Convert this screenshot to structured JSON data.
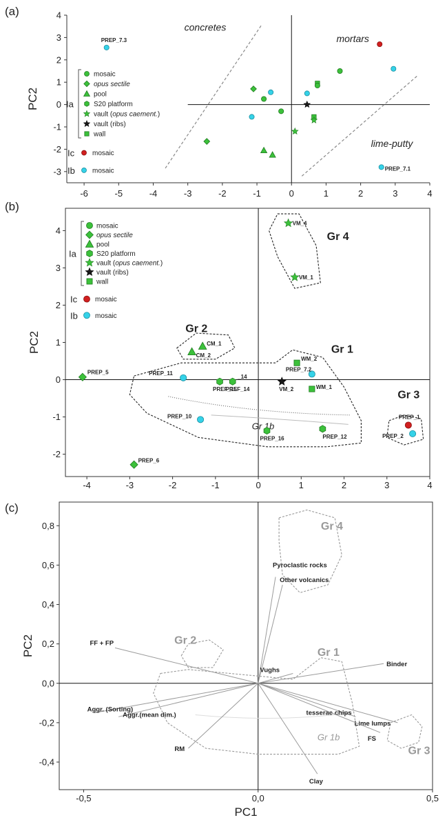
{
  "figure": {
    "colors": {
      "green": "#3cc13b",
      "green_stroke": "#1f7a1f",
      "red": "#d11f1f",
      "cyan": "#35d2e8",
      "dark": "#1a1a1a",
      "dash": "#888888",
      "gray_text": "#999999"
    }
  },
  "chart_data": [
    {
      "panel": "(a)",
      "type": "scatter",
      "xlim": [
        -6.5,
        4
      ],
      "ylim": [
        -3.5,
        4
      ],
      "xticks": [
        -6,
        -5,
        -4,
        -3,
        -2,
        -1,
        0,
        1,
        2,
        3,
        4
      ],
      "yticks": [
        -3,
        -2,
        -1,
        0,
        1,
        2,
        3,
        4
      ],
      "xlabel": "",
      "ylabel": "PC2",
      "region_labels": [
        {
          "text": "concretes",
          "x": -3.1,
          "y": 3.3
        },
        {
          "text": "mortars",
          "x": 1.3,
          "y": 2.8
        },
        {
          "text": "lime-putty",
          "x": 2.3,
          "y": -1.9
        }
      ],
      "legend": {
        "groups": [
          {
            "label": "Ia",
            "items": [
              {
                "label": "mosaic",
                "marker": "circle",
                "color": "green"
              },
              {
                "label": "opus sectile",
                "italic": true,
                "marker": "diamond",
                "color": "green"
              },
              {
                "label": "pool",
                "marker": "triangle",
                "color": "green"
              },
              {
                "label": "S20 platform",
                "marker": "hexagon",
                "color": "green"
              },
              {
                "label": "vault (opus caement.)",
                "italic_part": "opus caement.",
                "marker": "star",
                "color": "green"
              },
              {
                "label": "vault (ribs)",
                "marker": "star",
                "color": "dark"
              },
              {
                "label": "wall",
                "marker": "square",
                "color": "green"
              }
            ]
          },
          {
            "label": "Ic",
            "items": [
              {
                "label": "mosaic",
                "marker": "circle",
                "color": "red"
              }
            ]
          },
          {
            "label": "Ib",
            "items": [
              {
                "label": "mosaic",
                "marker": "circle",
                "color": "cyan"
              }
            ]
          }
        ]
      },
      "points": [
        {
          "x": -5.35,
          "y": 2.55,
          "marker": "circle",
          "color": "cyan",
          "label": "PREP_7.3"
        },
        {
          "x": 2.55,
          "y": 2.7,
          "marker": "circle",
          "color": "red"
        },
        {
          "x": 2.95,
          "y": 1.6,
          "marker": "circle",
          "color": "cyan"
        },
        {
          "x": 1.4,
          "y": 1.5,
          "marker": "circle",
          "color": "green"
        },
        {
          "x": 0.75,
          "y": 0.95,
          "marker": "square",
          "color": "green"
        },
        {
          "x": 0.75,
          "y": 0.85,
          "marker": "circle",
          "color": "green"
        },
        {
          "x": -1.1,
          "y": 0.7,
          "marker": "diamond",
          "color": "green"
        },
        {
          "x": -0.6,
          "y": 0.55,
          "marker": "circle",
          "color": "cyan"
        },
        {
          "x": 0.45,
          "y": 0.5,
          "marker": "circle",
          "color": "cyan"
        },
        {
          "x": -0.8,
          "y": 0.25,
          "marker": "circle",
          "color": "green"
        },
        {
          "x": 0.45,
          "y": 0.0,
          "marker": "star",
          "color": "dark"
        },
        {
          "x": -0.3,
          "y": -0.3,
          "marker": "circle",
          "color": "green"
        },
        {
          "x": -1.15,
          "y": -0.55,
          "marker": "circle",
          "color": "cyan"
        },
        {
          "x": 0.65,
          "y": -0.55,
          "marker": "square",
          "color": "green"
        },
        {
          "x": 0.65,
          "y": -0.7,
          "marker": "star",
          "color": "green"
        },
        {
          "x": 0.1,
          "y": -1.2,
          "marker": "star",
          "color": "green"
        },
        {
          "x": -2.45,
          "y": -1.65,
          "marker": "diamond",
          "color": "green"
        },
        {
          "x": -0.8,
          "y": -2.05,
          "marker": "triangle",
          "color": "green"
        },
        {
          "x": -0.55,
          "y": -2.25,
          "marker": "triangle",
          "color": "green"
        },
        {
          "x": 2.6,
          "y": -2.8,
          "marker": "circle",
          "color": "cyan",
          "label": "PREP_7.1"
        }
      ],
      "dashed_lines": [
        {
          "x1": -3.65,
          "y1": -2.85,
          "x2": -0.85,
          "y2": 3.6
        },
        {
          "x1": 0.3,
          "y1": -3.2,
          "x2": 3.65,
          "y2": 1.3
        }
      ]
    },
    {
      "panel": "(b)",
      "type": "scatter",
      "xlim": [
        -4.5,
        4
      ],
      "ylim": [
        -2.6,
        4.6
      ],
      "xticks": [
        -4,
        -3,
        -2,
        -1,
        0,
        1,
        2,
        3,
        4
      ],
      "yticks": [
        -2,
        -1,
        0,
        1,
        2,
        3,
        4
      ],
      "xlabel": "",
      "ylabel": "PC2",
      "group_labels": [
        {
          "text": "Gr 4",
          "x": 1.6,
          "y": 3.75
        },
        {
          "text": "Gr 2",
          "x": -1.7,
          "y": 1.28
        },
        {
          "text": "Gr 1",
          "x": 1.7,
          "y": 0.72
        },
        {
          "text": "Gr 3",
          "x": 3.25,
          "y": -0.5
        },
        {
          "text": "Gr 1b",
          "x": -0.15,
          "y": -1.33,
          "italic": true
        }
      ],
      "legend_same_as": "(a)",
      "points": [
        {
          "x": 0.7,
          "y": 4.2,
          "marker": "star",
          "color": "green",
          "label": "VM_4"
        },
        {
          "x": 0.85,
          "y": 2.75,
          "marker": "star",
          "color": "green",
          "label": "VM_1"
        },
        {
          "x": -1.3,
          "y": 0.9,
          "marker": "triangle",
          "color": "green",
          "label": "CM_1"
        },
        {
          "x": -1.55,
          "y": 0.75,
          "marker": "triangle",
          "color": "green",
          "label": "CM_2"
        },
        {
          "x": -4.1,
          "y": 0.07,
          "marker": "diamond",
          "color": "green",
          "label": "PREP_5"
        },
        {
          "x": -1.75,
          "y": 0.05,
          "marker": "circle",
          "color": "cyan",
          "label": "PREP_11"
        },
        {
          "x": -0.9,
          "y": -0.05,
          "marker": "hexagon",
          "color": "green",
          "label": "PREF_15"
        },
        {
          "x": -0.6,
          "y": -0.05,
          "marker": "hexagon",
          "color": "green",
          "label": "PREF_14"
        },
        {
          "x": 0.55,
          "y": -0.05,
          "marker": "star",
          "color": "dark",
          "label": "VM_2"
        },
        {
          "x": 0.9,
          "y": 0.45,
          "marker": "square",
          "color": "green",
          "label": "WM_2"
        },
        {
          "x": 1.25,
          "y": 0.15,
          "marker": "circle",
          "color": "cyan",
          "label": "PREP_7.2"
        },
        {
          "x": 1.25,
          "y": -0.25,
          "marker": "square",
          "color": "green",
          "label": "WM_1"
        },
        {
          "x": -1.35,
          "y": -1.07,
          "marker": "circle",
          "color": "cyan",
          "label": "PREP_10"
        },
        {
          "x": 0.2,
          "y": -1.37,
          "marker": "hexagon",
          "color": "green",
          "label": "PREP_16"
        },
        {
          "x": 1.5,
          "y": -1.32,
          "marker": "hexagon",
          "color": "green",
          "label": "PREP_12"
        },
        {
          "x": 3.5,
          "y": -1.22,
          "marker": "circle",
          "color": "red",
          "label": "PREP_1"
        },
        {
          "x": 3.6,
          "y": -1.45,
          "marker": "circle",
          "color": "cyan",
          "label": "PREP_2"
        },
        {
          "x": -2.9,
          "y": -2.28,
          "marker": "diamond",
          "color": "green",
          "label": "PREP_6"
        }
      ],
      "extra_labels": [
        {
          "text": "_14",
          "x": -0.48,
          "y": 0.03
        }
      ]
    },
    {
      "panel": "(c)",
      "type": "biplot",
      "xlim": [
        -0.57,
        0.5
      ],
      "ylim": [
        -0.54,
        0.92
      ],
      "xticks": [
        -0.5,
        0.0,
        0.5
      ],
      "xticklabels": [
        "-0,5",
        "0,0",
        "0,5"
      ],
      "yticks": [
        -0.4,
        -0.2,
        0.0,
        0.2,
        0.4,
        0.6,
        0.8
      ],
      "yticklabels": [
        "-0,4",
        "-0,2",
        "0,0",
        "0,2",
        "0,4",
        "0,6",
        "0,8"
      ],
      "xlabel": "PC1",
      "ylabel": "PC2",
      "group_labels": [
        {
          "text": "Gr 4",
          "x": 0.18,
          "y": 0.78
        },
        {
          "text": "Gr 2",
          "x": -0.24,
          "y": 0.2
        },
        {
          "text": "Gr 1",
          "x": 0.17,
          "y": 0.14
        },
        {
          "text": "Gr 3",
          "x": 0.43,
          "y": -0.36
        },
        {
          "text": "Gr 1b",
          "x": 0.17,
          "y": -0.29,
          "italic": true
        }
      ],
      "vectors": [
        {
          "name": "Pyroclastic rocks",
          "x": 0.05,
          "y": 0.54
        },
        {
          "name": "Other volcanics",
          "x": 0.07,
          "y": 0.5
        },
        {
          "name": "FF + FP",
          "x": -0.41,
          "y": 0.18
        },
        {
          "name": "Binder",
          "x": 0.36,
          "y": 0.1
        },
        {
          "name": "Vughs",
          "x": 0.1,
          "y": 0.05
        },
        {
          "name": "tesserae chips",
          "x": 0.28,
          "y": -0.17
        },
        {
          "name": "Lime lumps",
          "x": 0.4,
          "y": -0.2
        },
        {
          "name": "FS",
          "x": 0.35,
          "y": -0.25
        },
        {
          "name": "Aggr. (Sorting)",
          "x": -0.47,
          "y": -0.15
        },
        {
          "name": "Aggr.(mean dim.)",
          "x": -0.4,
          "y": -0.17
        },
        {
          "name": "RM",
          "x": -0.2,
          "y": -0.33
        },
        {
          "name": "Clay",
          "x": 0.17,
          "y": -0.46
        }
      ]
    }
  ]
}
